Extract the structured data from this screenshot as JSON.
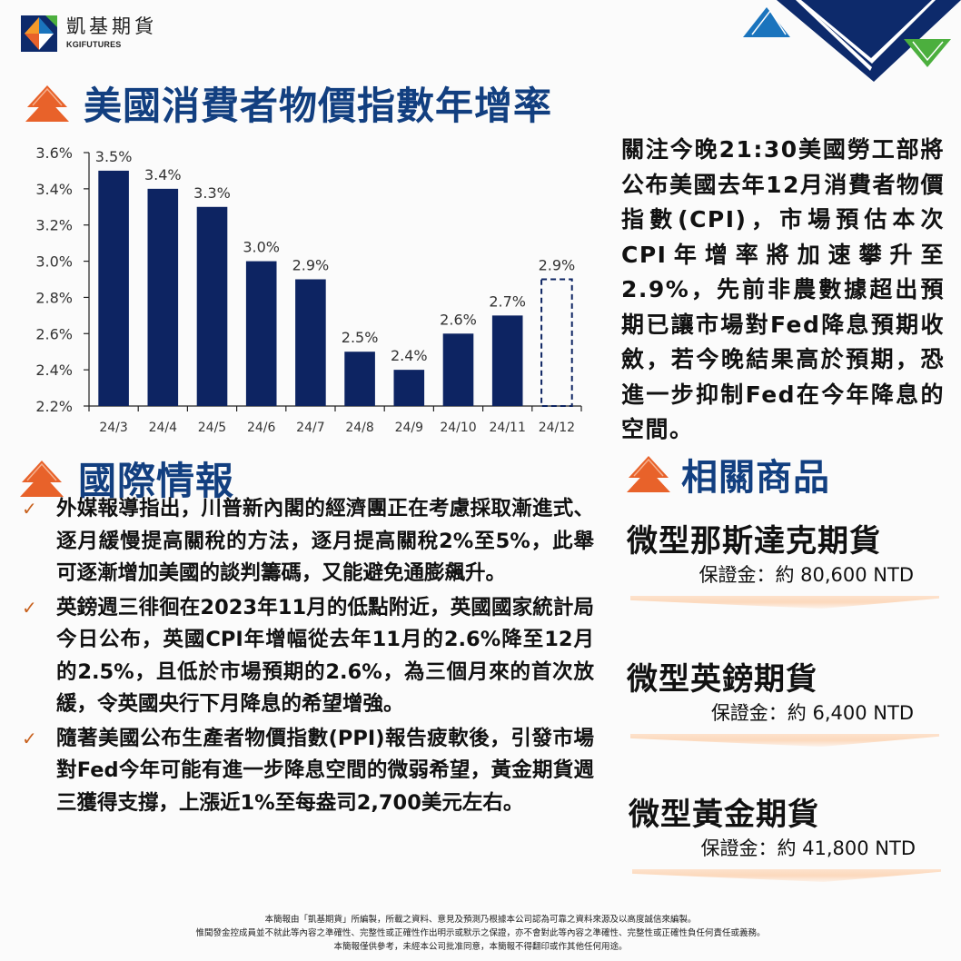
{
  "brand": {
    "name_cn": "凱基期貨",
    "name_en": "KGIFUTURES",
    "colors": {
      "navy": "#0d2a6b",
      "title_blue": "#123f80",
      "orange": "#e8622a",
      "blue": "#1a74bd",
      "green": "#4caf3e"
    }
  },
  "sections": {
    "cpi_title": "美國消費者物價指數年增率",
    "intl_title": "國際情報",
    "related_title": "相關商品"
  },
  "chart_data": {
    "type": "bar",
    "title": "美國消費者物價指數年增率",
    "xlabel": "",
    "ylabel": "",
    "categories": [
      "24/3",
      "24/4",
      "24/5",
      "24/6",
      "24/7",
      "24/8",
      "24/9",
      "24/10",
      "24/11",
      "24/12"
    ],
    "values": [
      3.5,
      3.4,
      3.3,
      3.0,
      2.9,
      2.5,
      2.4,
      2.6,
      2.7,
      2.9
    ],
    "data_labels": [
      "3.5%",
      "3.4%",
      "3.3%",
      "3.0%",
      "2.9%",
      "2.5%",
      "2.4%",
      "2.6%",
      "2.7%",
      "2.9%"
    ],
    "forecast_index": [
      9
    ],
    "forecast_style": "dashed-outline",
    "ylim": [
      2.2,
      3.6
    ],
    "yticks": [
      "2.2%",
      "2.4%",
      "2.6%",
      "2.8%",
      "3.0%",
      "3.2%",
      "3.4%",
      "3.6%"
    ],
    "ytick_values": [
      2.2,
      2.4,
      2.6,
      2.8,
      3.0,
      3.2,
      3.4,
      3.6
    ],
    "grid": false,
    "legend": null,
    "bar_color": "#0d2462"
  },
  "commentary": "關注今晚21:30美國勞工部將公布美國去年12月消費者物價指數(CPI)，市場預估本次CPI年增率將加速攀升至2.9%，先前非農數據超出預期已讓市場對Fed降息預期收斂，若今晚結果高於預期，恐進一步抑制Fed在今年降息的空間。",
  "intl_news": [
    {
      "check": "✓",
      "text": "外媒報導指出，川普新內閣的經濟團正在考慮採取漸進式、逐月緩慢提高關稅的方法，逐月提高關稅2%至5%，此舉可逐漸增加美國的談判籌碼，又能避免通膨飆升。"
    },
    {
      "check": "✓",
      "text": "英鎊週三徘徊在2023年11月的低點附近，英國國家統計局今日公布，英國CPI年增幅從去年11月的2.6%降至12月的2.5%，且低於市場預期的2.6%，為三個月來的首次放緩，令英國央行下月降息的希望增強。"
    },
    {
      "check": "✓",
      "text": "隨著美國公布生產者物價指數(PPI)報告疲軟後，引發市場對Fed今年可能有進一步降息空間的微弱希望，黃金期貨週三獲得支撐，上漲近1%至每盎司2,700美元左右。"
    }
  ],
  "products": [
    {
      "name": "微型那斯達克期貨",
      "margin": "保證金：約 80,600 NTD"
    },
    {
      "name": "微型英鎊期貨",
      "margin": "保證金：約 6,400 NTD"
    },
    {
      "name": "微型黃金期貨",
      "margin": "保證金：約 41,800 NTD"
    }
  ],
  "footer": [
    "本簡報由「凱基期貨」所編製，所載之資料、意見及預測乃根據本公司認為可靠之資料來源及以高度誠信來編製。",
    "惟聞發金控成員並不就此等內容之準確性、完整性或正確性作出明示或默示之保證，亦不會對此等內容之準確性、完整性或正確性負任何責任或義務。",
    "本簡報僅供參考，未經本公司批准同意，本簡報不得翻印或作其他任何用途。"
  ]
}
